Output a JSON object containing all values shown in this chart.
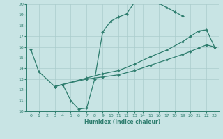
{
  "xlabel": "Humidex (Indice chaleur)",
  "xlim": [
    -0.5,
    23.5
  ],
  "ylim": [
    10,
    20
  ],
  "xticks": [
    0,
    1,
    2,
    3,
    4,
    5,
    6,
    7,
    8,
    9,
    10,
    11,
    12,
    13,
    14,
    15,
    16,
    17,
    18,
    19,
    20,
    21,
    22,
    23
  ],
  "yticks": [
    10,
    11,
    12,
    13,
    14,
    15,
    16,
    17,
    18,
    19,
    20
  ],
  "bg_color": "#c8e4e4",
  "line_color": "#2e7d6e",
  "grid_color": "#aacccc",
  "line1_x": [
    0,
    1,
    3,
    4,
    5,
    6,
    7,
    8,
    9,
    10,
    11,
    12,
    13,
    14,
    15,
    16,
    17,
    18,
    19
  ],
  "line1_y": [
    15.8,
    13.7,
    12.3,
    12.5,
    11.0,
    10.2,
    10.3,
    13.0,
    17.4,
    18.4,
    18.8,
    19.1,
    20.2,
    20.2,
    20.2,
    20.1,
    19.7,
    19.3,
    18.9
  ],
  "line2_x": [
    3,
    4,
    7,
    9,
    11,
    13,
    15,
    17,
    19,
    20,
    21,
    22,
    23
  ],
  "line2_y": [
    12.3,
    12.5,
    13.1,
    13.5,
    13.8,
    14.4,
    15.1,
    15.7,
    16.5,
    17.0,
    17.5,
    17.6,
    16.0
  ],
  "line3_x": [
    3,
    4,
    7,
    9,
    11,
    13,
    15,
    17,
    19,
    20,
    21,
    22,
    23
  ],
  "line3_y": [
    12.3,
    12.5,
    13.0,
    13.2,
    13.4,
    13.8,
    14.3,
    14.8,
    15.3,
    15.6,
    15.9,
    16.2,
    16.0
  ]
}
